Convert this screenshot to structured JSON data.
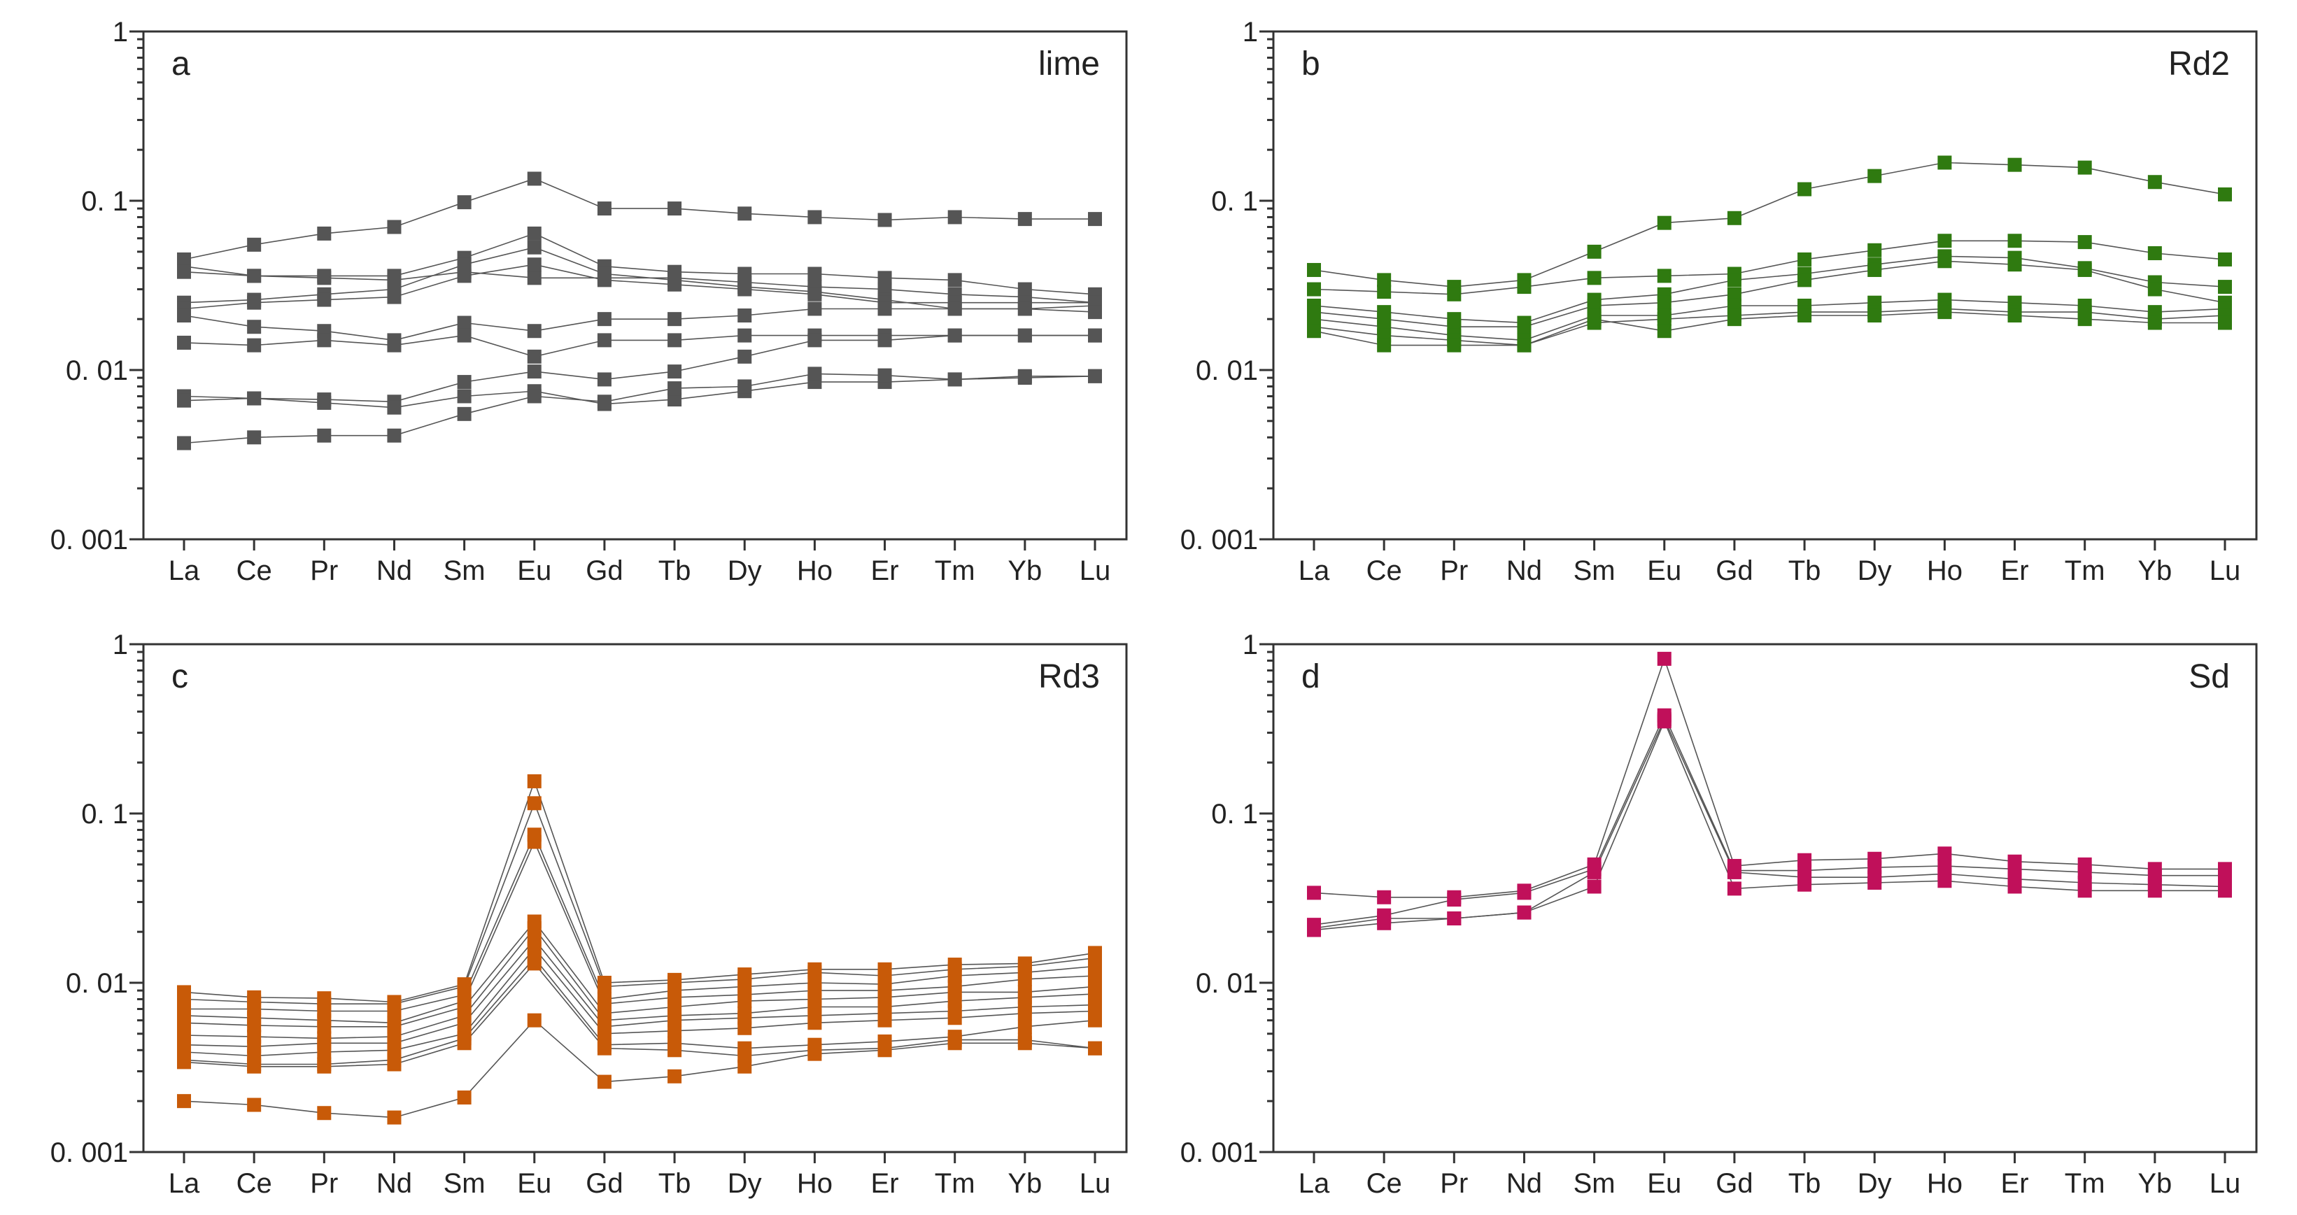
{
  "chart_data": [
    {
      "type": "line",
      "panel_letter": "a",
      "panel_name": "lime",
      "color": "#555555",
      "y_scale": "log",
      "ylim": [
        0.001,
        1
      ],
      "y_ticks": [
        {
          "value": 1,
          "label": "1"
        },
        {
          "value": 0.1,
          "label": "0. 1"
        },
        {
          "value": 0.01,
          "label": "0. 01"
        },
        {
          "value": 0.001,
          "label": "0. 001"
        }
      ],
      "categories": [
        "La",
        "Ce",
        "Pr",
        "Nd",
        "Sm",
        "Eu",
        "Gd",
        "Tb",
        "Dy",
        "Ho",
        "Er",
        "Tm",
        "Yb",
        "Lu"
      ],
      "series": [
        {
          "values": [
            0.045,
            0.055,
            0.064,
            0.07,
            0.098,
            0.135,
            0.09,
            0.09,
            0.084,
            0.08,
            0.077,
            0.08,
            0.078,
            0.078
          ]
        },
        {
          "values": [
            0.041,
            0.036,
            0.036,
            0.036,
            0.046,
            0.064,
            0.041,
            0.038,
            0.037,
            0.037,
            0.035,
            0.034,
            0.03,
            0.028
          ]
        },
        {
          "values": [
            0.038,
            0.036,
            0.035,
            0.034,
            0.038,
            0.035,
            0.035,
            0.035,
            0.033,
            0.031,
            0.03,
            0.028,
            0.027,
            0.025
          ]
        },
        {
          "values": [
            0.025,
            0.026,
            0.028,
            0.03,
            0.042,
            0.053,
            0.037,
            0.034,
            0.031,
            0.029,
            0.026,
            0.023,
            0.023,
            0.024
          ]
        },
        {
          "values": [
            0.023,
            0.025,
            0.026,
            0.027,
            0.036,
            0.042,
            0.034,
            0.032,
            0.03,
            0.028,
            0.025,
            0.025,
            0.025,
            0.025
          ]
        },
        {
          "values": [
            0.021,
            0.018,
            0.017,
            0.015,
            0.019,
            0.017,
            0.02,
            0.02,
            0.021,
            0.023,
            0.023,
            0.023,
            0.023,
            0.022
          ]
        },
        {
          "values": [
            0.0145,
            0.014,
            0.015,
            0.014,
            0.016,
            0.012,
            0.015,
            0.015,
            0.016,
            0.016,
            0.016,
            0.016,
            0.016,
            0.016
          ]
        },
        {
          "values": [
            0.007,
            0.0068,
            0.0067,
            0.0065,
            0.0085,
            0.0098,
            0.0088,
            0.0098,
            0.012,
            0.015,
            0.015,
            0.016,
            0.016,
            0.016
          ]
        },
        {
          "values": [
            0.0066,
            0.0068,
            0.0064,
            0.006,
            0.007,
            0.0075,
            0.0063,
            0.0067,
            0.0075,
            0.0085,
            0.0085,
            0.0088,
            0.009,
            0.0092
          ]
        },
        {
          "values": [
            0.0037,
            0.004,
            0.0041,
            0.0041,
            0.0055,
            0.007,
            0.0065,
            0.0078,
            0.008,
            0.0095,
            0.0093,
            0.0088,
            0.0092,
            0.0092
          ]
        }
      ]
    },
    {
      "type": "line",
      "panel_letter": "b",
      "panel_name": "Rd2",
      "color": "#2f7a10",
      "y_scale": "log",
      "ylim": [
        0.001,
        1
      ],
      "y_ticks": [
        {
          "value": 1,
          "label": "1"
        },
        {
          "value": 0.1,
          "label": "0. 1"
        },
        {
          "value": 0.01,
          "label": "0. 01"
        },
        {
          "value": 0.001,
          "label": "0. 001"
        }
      ],
      "categories": [
        "La",
        "Ce",
        "Pr",
        "Nd",
        "Sm",
        "Eu",
        "Gd",
        "Tb",
        "Dy",
        "Ho",
        "Er",
        "Tm",
        "Yb",
        "Lu"
      ],
      "series": [
        {
          "values": [
            0.039,
            0.034,
            0.031,
            0.034,
            0.05,
            0.074,
            0.079,
            0.117,
            0.14,
            0.168,
            0.163,
            0.157,
            0.129,
            0.109
          ]
        },
        {
          "values": [
            0.03,
            0.029,
            0.028,
            0.031,
            0.035,
            0.036,
            0.037,
            0.045,
            0.051,
            0.058,
            0.058,
            0.057,
            0.049,
            0.045
          ]
        },
        {
          "values": [
            0.024,
            0.022,
            0.02,
            0.019,
            0.026,
            0.028,
            0.034,
            0.037,
            0.042,
            0.047,
            0.046,
            0.04,
            0.033,
            0.031
          ]
        },
        {
          "values": [
            0.022,
            0.02,
            0.018,
            0.018,
            0.024,
            0.025,
            0.028,
            0.034,
            0.039,
            0.044,
            0.042,
            0.039,
            0.03,
            0.025
          ]
        },
        {
          "values": [
            0.02,
            0.018,
            0.016,
            0.015,
            0.021,
            0.021,
            0.024,
            0.024,
            0.025,
            0.026,
            0.025,
            0.024,
            0.022,
            0.023
          ]
        },
        {
          "values": [
            0.018,
            0.016,
            0.015,
            0.014,
            0.019,
            0.02,
            0.021,
            0.022,
            0.022,
            0.023,
            0.022,
            0.022,
            0.02,
            0.021
          ]
        },
        {
          "values": [
            0.017,
            0.014,
            0.014,
            0.014,
            0.02,
            0.017,
            0.02,
            0.021,
            0.021,
            0.022,
            0.021,
            0.02,
            0.019,
            0.019
          ]
        }
      ]
    },
    {
      "type": "line",
      "panel_letter": "c",
      "panel_name": "Rd3",
      "color": "#c85a08",
      "y_scale": "log",
      "ylim": [
        0.001,
        1
      ],
      "y_ticks": [
        {
          "value": 1,
          "label": "1"
        },
        {
          "value": 0.1,
          "label": "0. 1"
        },
        {
          "value": 0.01,
          "label": "0. 01"
        },
        {
          "value": 0.001,
          "label": "0. 001"
        }
      ],
      "categories": [
        "La",
        "Ce",
        "Pr",
        "Nd",
        "Sm",
        "Eu",
        "Gd",
        "Tb",
        "Dy",
        "Ho",
        "Er",
        "Tm",
        "Yb",
        "Lu"
      ],
      "series": [
        {
          "values": [
            0.0088,
            0.0082,
            0.0081,
            0.0077,
            0.0098,
            0.155,
            0.01,
            0.0104,
            0.0112,
            0.012,
            0.012,
            0.0128,
            0.013,
            0.015
          ]
        },
        {
          "values": [
            0.008,
            0.0077,
            0.0075,
            0.0075,
            0.0095,
            0.115,
            0.0095,
            0.01,
            0.0105,
            0.0115,
            0.011,
            0.012,
            0.0125,
            0.014
          ]
        },
        {
          "values": [
            0.007,
            0.007,
            0.0068,
            0.0068,
            0.0085,
            0.075,
            0.008,
            0.009,
            0.0095,
            0.01,
            0.0098,
            0.011,
            0.0115,
            0.0125
          ]
        },
        {
          "values": [
            0.0064,
            0.0062,
            0.006,
            0.0058,
            0.0078,
            0.068,
            0.0075,
            0.0082,
            0.0085,
            0.009,
            0.009,
            0.0095,
            0.0105,
            0.011
          ]
        },
        {
          "values": [
            0.0058,
            0.0056,
            0.0055,
            0.0055,
            0.0072,
            0.023,
            0.0066,
            0.0072,
            0.0078,
            0.008,
            0.0082,
            0.0088,
            0.0088,
            0.0095
          ]
        },
        {
          "values": [
            0.0049,
            0.0048,
            0.0047,
            0.0048,
            0.0064,
            0.021,
            0.006,
            0.0064,
            0.0066,
            0.0072,
            0.0072,
            0.0078,
            0.0082,
            0.0086
          ]
        },
        {
          "values": [
            0.0043,
            0.0042,
            0.0044,
            0.0044,
            0.0058,
            0.018,
            0.0055,
            0.006,
            0.0062,
            0.0064,
            0.0066,
            0.0068,
            0.0072,
            0.0074
          ]
        },
        {
          "values": [
            0.0039,
            0.0037,
            0.0039,
            0.004,
            0.005,
            0.016,
            0.005,
            0.0052,
            0.0054,
            0.0058,
            0.006,
            0.0062,
            0.0066,
            0.0068
          ]
        },
        {
          "values": [
            0.0035,
            0.0033,
            0.0033,
            0.0035,
            0.0047,
            0.014,
            0.0043,
            0.0044,
            0.0041,
            0.0043,
            0.0045,
            0.0048,
            0.0055,
            0.006
          ]
        },
        {
          "values": [
            0.0034,
            0.0032,
            0.0032,
            0.0033,
            0.0044,
            0.013,
            0.0041,
            0.004,
            0.0037,
            0.004,
            0.0041,
            0.0046,
            0.0046,
            0.0041
          ]
        },
        {
          "values": [
            0.002,
            0.0019,
            0.0017,
            0.0016,
            0.0021,
            0.006,
            0.0026,
            0.0028,
            0.0032,
            0.0038,
            0.004,
            0.0044,
            0.0044,
            0.0041
          ]
        }
      ]
    },
    {
      "type": "line",
      "panel_letter": "d",
      "panel_name": "Sd",
      "color": "#c0105a",
      "y_scale": "log",
      "ylim": [
        0.001,
        1
      ],
      "y_ticks": [
        {
          "value": 1,
          "label": "1"
        },
        {
          "value": 0.1,
          "label": "0. 1"
        },
        {
          "value": 0.01,
          "label": "0. 01"
        },
        {
          "value": 0.001,
          "label": "0. 001"
        }
      ],
      "categories": [
        "La",
        "Ce",
        "Pr",
        "Nd",
        "Sm",
        "Eu",
        "Gd",
        "Tb",
        "Dy",
        "Ho",
        "Er",
        "Tm",
        "Yb",
        "Lu"
      ],
      "series": [
        {
          "values": [
            0.034,
            0.032,
            0.032,
            0.035,
            0.05,
            0.82,
            0.049,
            0.053,
            0.054,
            0.058,
            0.052,
            0.05,
            0.047,
            0.047
          ]
        },
        {
          "values": [
            0.022,
            0.025,
            0.031,
            0.034,
            0.047,
            0.38,
            0.046,
            0.046,
            0.048,
            0.049,
            0.047,
            0.045,
            0.043,
            0.043
          ]
        },
        {
          "values": [
            0.021,
            0.024,
            0.024,
            0.026,
            0.045,
            0.36,
            0.045,
            0.042,
            0.042,
            0.044,
            0.041,
            0.039,
            0.038,
            0.037
          ]
        },
        {
          "values": [
            0.0205,
            0.0225,
            0.024,
            0.026,
            0.037,
            0.35,
            0.036,
            0.038,
            0.039,
            0.04,
            0.037,
            0.035,
            0.035,
            0.035
          ]
        }
      ]
    }
  ]
}
